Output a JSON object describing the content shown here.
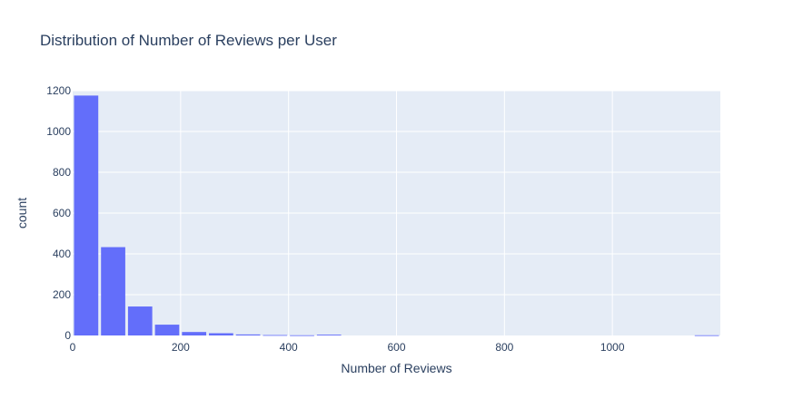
{
  "chart_data": {
    "type": "bar",
    "title": "Distribution of Number of Reviews per User",
    "xlabel": "Number of Reviews",
    "ylabel": "count",
    "bin_width": 50,
    "bin_starts": [
      0,
      50,
      100,
      150,
      200,
      250,
      300,
      350,
      400,
      450,
      500,
      550,
      600,
      650,
      700,
      750,
      800,
      850,
      900,
      950,
      1000,
      1050,
      1100,
      1150
    ],
    "values": [
      1176,
      433,
      142,
      53,
      17,
      11,
      5,
      2,
      1,
      4,
      0,
      0,
      0,
      0,
      0,
      0,
      0,
      0,
      0,
      0,
      0,
      0,
      0,
      1
    ],
    "xlim": [
      0,
      1200
    ],
    "ylim": [
      0,
      1200
    ],
    "x_ticks": [
      0,
      200,
      400,
      600,
      800,
      1000
    ],
    "y_ticks": [
      0,
      200,
      400,
      600,
      800,
      1000,
      1200
    ],
    "grid": true,
    "colors": {
      "bar": "#636efa",
      "plot_bg": "#e5ecf6",
      "grid": "#ffffff",
      "text": "#2a3f5f"
    }
  }
}
